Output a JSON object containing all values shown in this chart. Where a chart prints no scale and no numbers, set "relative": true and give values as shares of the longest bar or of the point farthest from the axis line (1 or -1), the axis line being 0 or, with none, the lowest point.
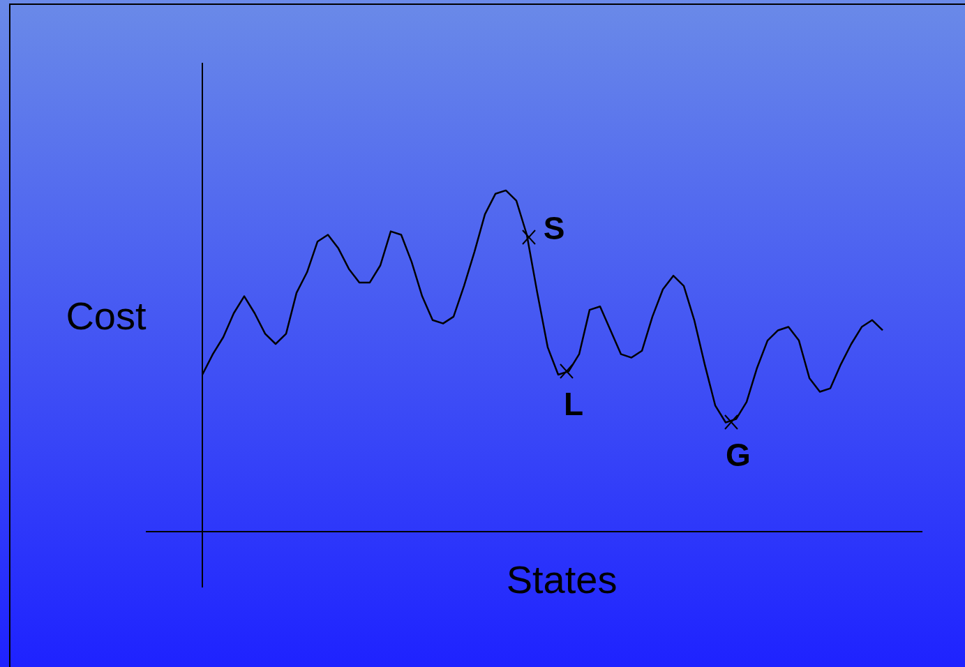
{
  "chart_data": {
    "type": "line",
    "relative": true,
    "xlabel": "States",
    "ylabel": "Cost",
    "color": "#000000",
    "categories": [
      null,
      null,
      null,
      null,
      null,
      null,
      null,
      null,
      null,
      null,
      null,
      null,
      null,
      null,
      null,
      null,
      null,
      null,
      null,
      null,
      null,
      null,
      null,
      null,
      null,
      null,
      null,
      null,
      null,
      null,
      null,
      null,
      null,
      null,
      null,
      null,
      null,
      null,
      null,
      null,
      null,
      null,
      null,
      null,
      null,
      null,
      null,
      null,
      null,
      null,
      null,
      null,
      null,
      null,
      null,
      null,
      null,
      null,
      null,
      null,
      null,
      null,
      null,
      null,
      null,
      null
    ],
    "values": [
      0.46,
      0.52,
      0.57,
      0.64,
      0.69,
      0.64,
      0.58,
      0.55,
      0.58,
      0.7,
      0.76,
      0.85,
      0.87,
      0.83,
      0.77,
      0.73,
      0.73,
      0.78,
      0.88,
      0.87,
      0.79,
      0.69,
      0.62,
      0.61,
      0.63,
      0.72,
      0.82,
      0.93,
      0.99,
      1,
      0.97,
      0.87,
      0.7,
      0.54,
      0.46,
      0.47,
      0.52,
      0.65,
      0.66,
      0.59,
      0.52,
      0.51,
      0.53,
      0.63,
      0.71,
      0.75,
      0.72,
      0.62,
      0.49,
      0.37,
      0.32,
      0.33,
      0.38,
      0.48,
      0.56,
      0.59,
      0.6,
      0.56,
      0.45,
      0.41,
      0.42,
      0.49,
      0.55,
      0.6,
      0.62,
      0.59
    ],
    "annotations": [
      "S",
      "L",
      "G"
    ]
  }
}
